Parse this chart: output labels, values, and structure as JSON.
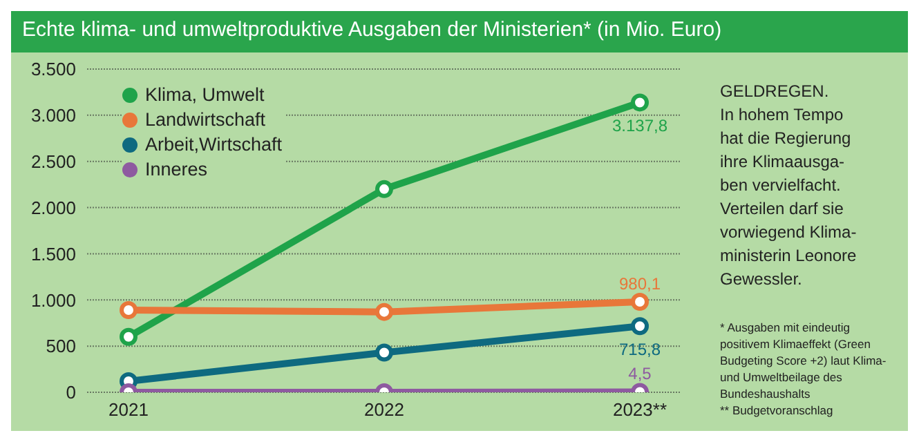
{
  "chart_data": {
    "type": "line",
    "title": "Echte klima- und umweltproduktive Ausgaben der Ministerien* (in Mio. Euro)",
    "categories": [
      "2021",
      "2022",
      "2023**"
    ],
    "series": [
      {
        "name": "Klima, Umwelt",
        "color": "#1fa34a",
        "values": [
          600,
          2200,
          3137.8
        ],
        "value_labels": [
          null,
          null,
          "3.137,8"
        ]
      },
      {
        "name": "Landwirtschaft",
        "color": "#e8773a",
        "values": [
          890,
          870,
          980.1
        ],
        "value_labels": [
          null,
          null,
          "980,1"
        ]
      },
      {
        "name": "Arbeit,Wirtschaft",
        "color": "#0e6a80",
        "values": [
          120,
          430,
          715.8
        ],
        "value_labels": [
          null,
          null,
          "715,8"
        ]
      },
      {
        "name": "Inneres",
        "color": "#8e5aa0",
        "values": [
          0,
          0,
          4.5
        ],
        "value_labels": [
          null,
          null,
          "4,5"
        ]
      }
    ],
    "ylim": [
      0,
      3500
    ],
    "yticks": [
      {
        "value": 0,
        "label": "0"
      },
      {
        "value": 500,
        "label": "500"
      },
      {
        "value": 1000,
        "label": "1.000"
      },
      {
        "value": 1500,
        "label": "1.500"
      },
      {
        "value": 2000,
        "label": "2.000"
      },
      {
        "value": 2500,
        "label": "2.500"
      },
      {
        "value": 3000,
        "label": "3.000"
      },
      {
        "value": 3500,
        "label": "3.500"
      }
    ],
    "grid": "y",
    "legend": "top left",
    "marker": "circle",
    "line_style": "solid",
    "annotations": [
      "GELDREGEN.\nIn hohem Tempo\nhat die Regierung\nihre Klimaausga-\nben vervielfacht.\nVerteilen darf sie\nvorwiegend Klima-\nministerin Leonore\nGewessler.",
      "* Ausgaben mit eindeutig\npositivem Klimaeffekt (Green\nBudgeting Score +2) laut Klima-\nund Umweltbeilage des\nBundeshaushalts\n** Budgetvoranschlag"
    ]
  }
}
